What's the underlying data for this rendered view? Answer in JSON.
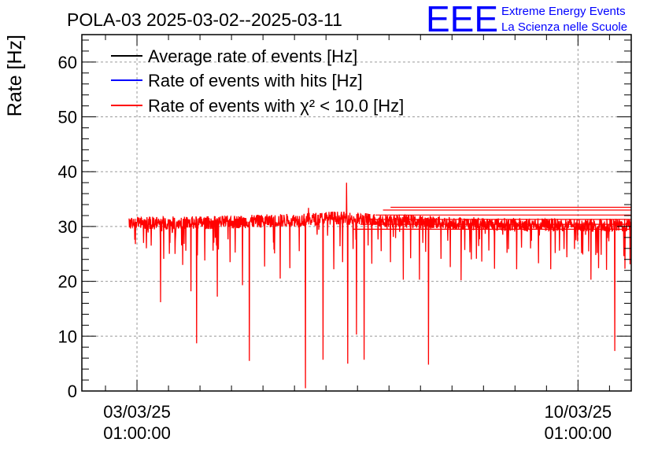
{
  "chart_data": {
    "type": "line",
    "title": "POLA-03 2025-03-02--2025-03-11",
    "xlabel": "",
    "ylabel": "Rate [Hz]",
    "ylim": [
      0,
      65
    ],
    "yticks": [
      0,
      10,
      20,
      30,
      40,
      50,
      60
    ],
    "xlim_days": [
      0,
      8.72
    ],
    "xlim_start_label": "02/03/25 04:00",
    "xticks": [
      {
        "day": 0.875,
        "date": "03/03/25",
        "time": "01:00:00"
      },
      {
        "day": 7.875,
        "date": "10/03/25",
        "time": "01:00:00"
      }
    ],
    "grid": true,
    "legend": [
      {
        "label": "Average rate of events [Hz]",
        "color": "#000000"
      },
      {
        "label": "Rate of events with hits [Hz]",
        "color": "#0000ff"
      },
      {
        "label": "Rate of events with χ² < 10.0 [Hz]",
        "color": "#ff0000"
      }
    ],
    "series": [
      {
        "name": "Rate of events with χ² < 10.0 [Hz]",
        "color": "#ff0000",
        "data_start_day": 0.75,
        "data_end_day": 8.72,
        "baseline_profile": [
          [
            0.75,
            30.6
          ],
          [
            2.0,
            30.7
          ],
          [
            3.5,
            31.2
          ],
          [
            4.0,
            31.6
          ],
          [
            5.0,
            31.0
          ],
          [
            6.5,
            30.4
          ],
          [
            8.72,
            30.2
          ]
        ],
        "noise_amplitude": 1.2,
        "dips": [
          [
            0.85,
            26.8
          ],
          [
            0.98,
            27.0
          ],
          [
            1.1,
            26.5
          ],
          [
            1.25,
            16.2
          ],
          [
            1.3,
            24.1
          ],
          [
            1.48,
            25.0
          ],
          [
            1.6,
            23.0
          ],
          [
            1.73,
            18.2
          ],
          [
            1.82,
            8.7
          ],
          [
            1.95,
            23.8
          ],
          [
            2.08,
            25.6
          ],
          [
            2.15,
            17.2
          ],
          [
            2.35,
            23.5
          ],
          [
            2.55,
            19.3
          ],
          [
            2.66,
            5.5
          ],
          [
            2.9,
            22.7
          ],
          [
            3.05,
            25.8
          ],
          [
            3.15,
            20.5
          ],
          [
            3.3,
            22.4
          ],
          [
            3.45,
            25.5
          ],
          [
            3.55,
            0.5
          ],
          [
            3.83,
            5.7
          ],
          [
            4.0,
            22.2
          ],
          [
            4.14,
            23.5
          ],
          [
            4.22,
            5.0
          ],
          [
            4.36,
            10.3
          ],
          [
            4.48,
            5.7
          ],
          [
            4.6,
            23.2
          ],
          [
            4.75,
            25.5
          ],
          [
            4.9,
            23.5
          ],
          [
            5.1,
            20.3
          ],
          [
            5.22,
            24.2
          ],
          [
            5.36,
            20.3
          ],
          [
            5.5,
            4.8
          ],
          [
            5.7,
            24.1
          ],
          [
            5.85,
            22.6
          ],
          [
            6.02,
            20.2
          ],
          [
            6.18,
            24.0
          ],
          [
            6.35,
            23.6
          ],
          [
            6.55,
            22.3
          ],
          [
            6.75,
            25.2
          ],
          [
            6.9,
            22.2
          ],
          [
            7.12,
            26.0
          ],
          [
            7.25,
            23.3
          ],
          [
            7.44,
            22.2
          ],
          [
            7.58,
            25.6
          ],
          [
            7.7,
            24.4
          ],
          [
            7.82,
            25.9
          ],
          [
            7.95,
            24.9
          ],
          [
            8.08,
            20.3
          ],
          [
            8.2,
            22.4
          ],
          [
            8.33,
            22.1
          ],
          [
            8.46,
            7.3
          ],
          [
            8.62,
            22.3
          ],
          [
            8.7,
            23.1
          ]
        ],
        "spikes": [
          [
            4.2,
            38.0
          ],
          [
            3.6,
            33.4
          ],
          [
            4.55,
            32.3
          ]
        ],
        "flat_tail_levels": [
          29.5,
          30.4,
          31.3,
          32.1,
          33.0,
          33.5
        ]
      }
    ]
  },
  "logo": {
    "text": "EEE",
    "line1": "Extreme Energy Events",
    "line2": "La Scienza nelle Scuole",
    "color": "#0000ff"
  }
}
